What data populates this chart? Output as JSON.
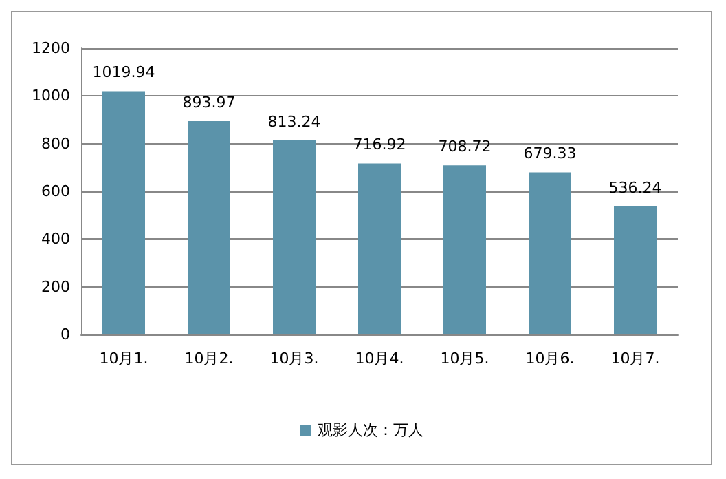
{
  "chart_data": {
    "type": "bar",
    "categories": [
      "10月1.",
      "10月2.",
      "10月3.",
      "10月4.",
      "10月5.",
      "10月6.",
      "10月7."
    ],
    "series": [
      {
        "name": "观影人次：万人",
        "color": "#5b93aa",
        "values": [
          1019.94,
          893.97,
          813.24,
          716.92,
          708.72,
          679.33,
          536.24
        ]
      }
    ],
    "ylim": [
      0,
      1200
    ],
    "yticks": [
      0,
      200,
      400,
      600,
      800,
      1000,
      1200
    ],
    "grid": "y",
    "legend": "bottom",
    "data_labels": true
  }
}
